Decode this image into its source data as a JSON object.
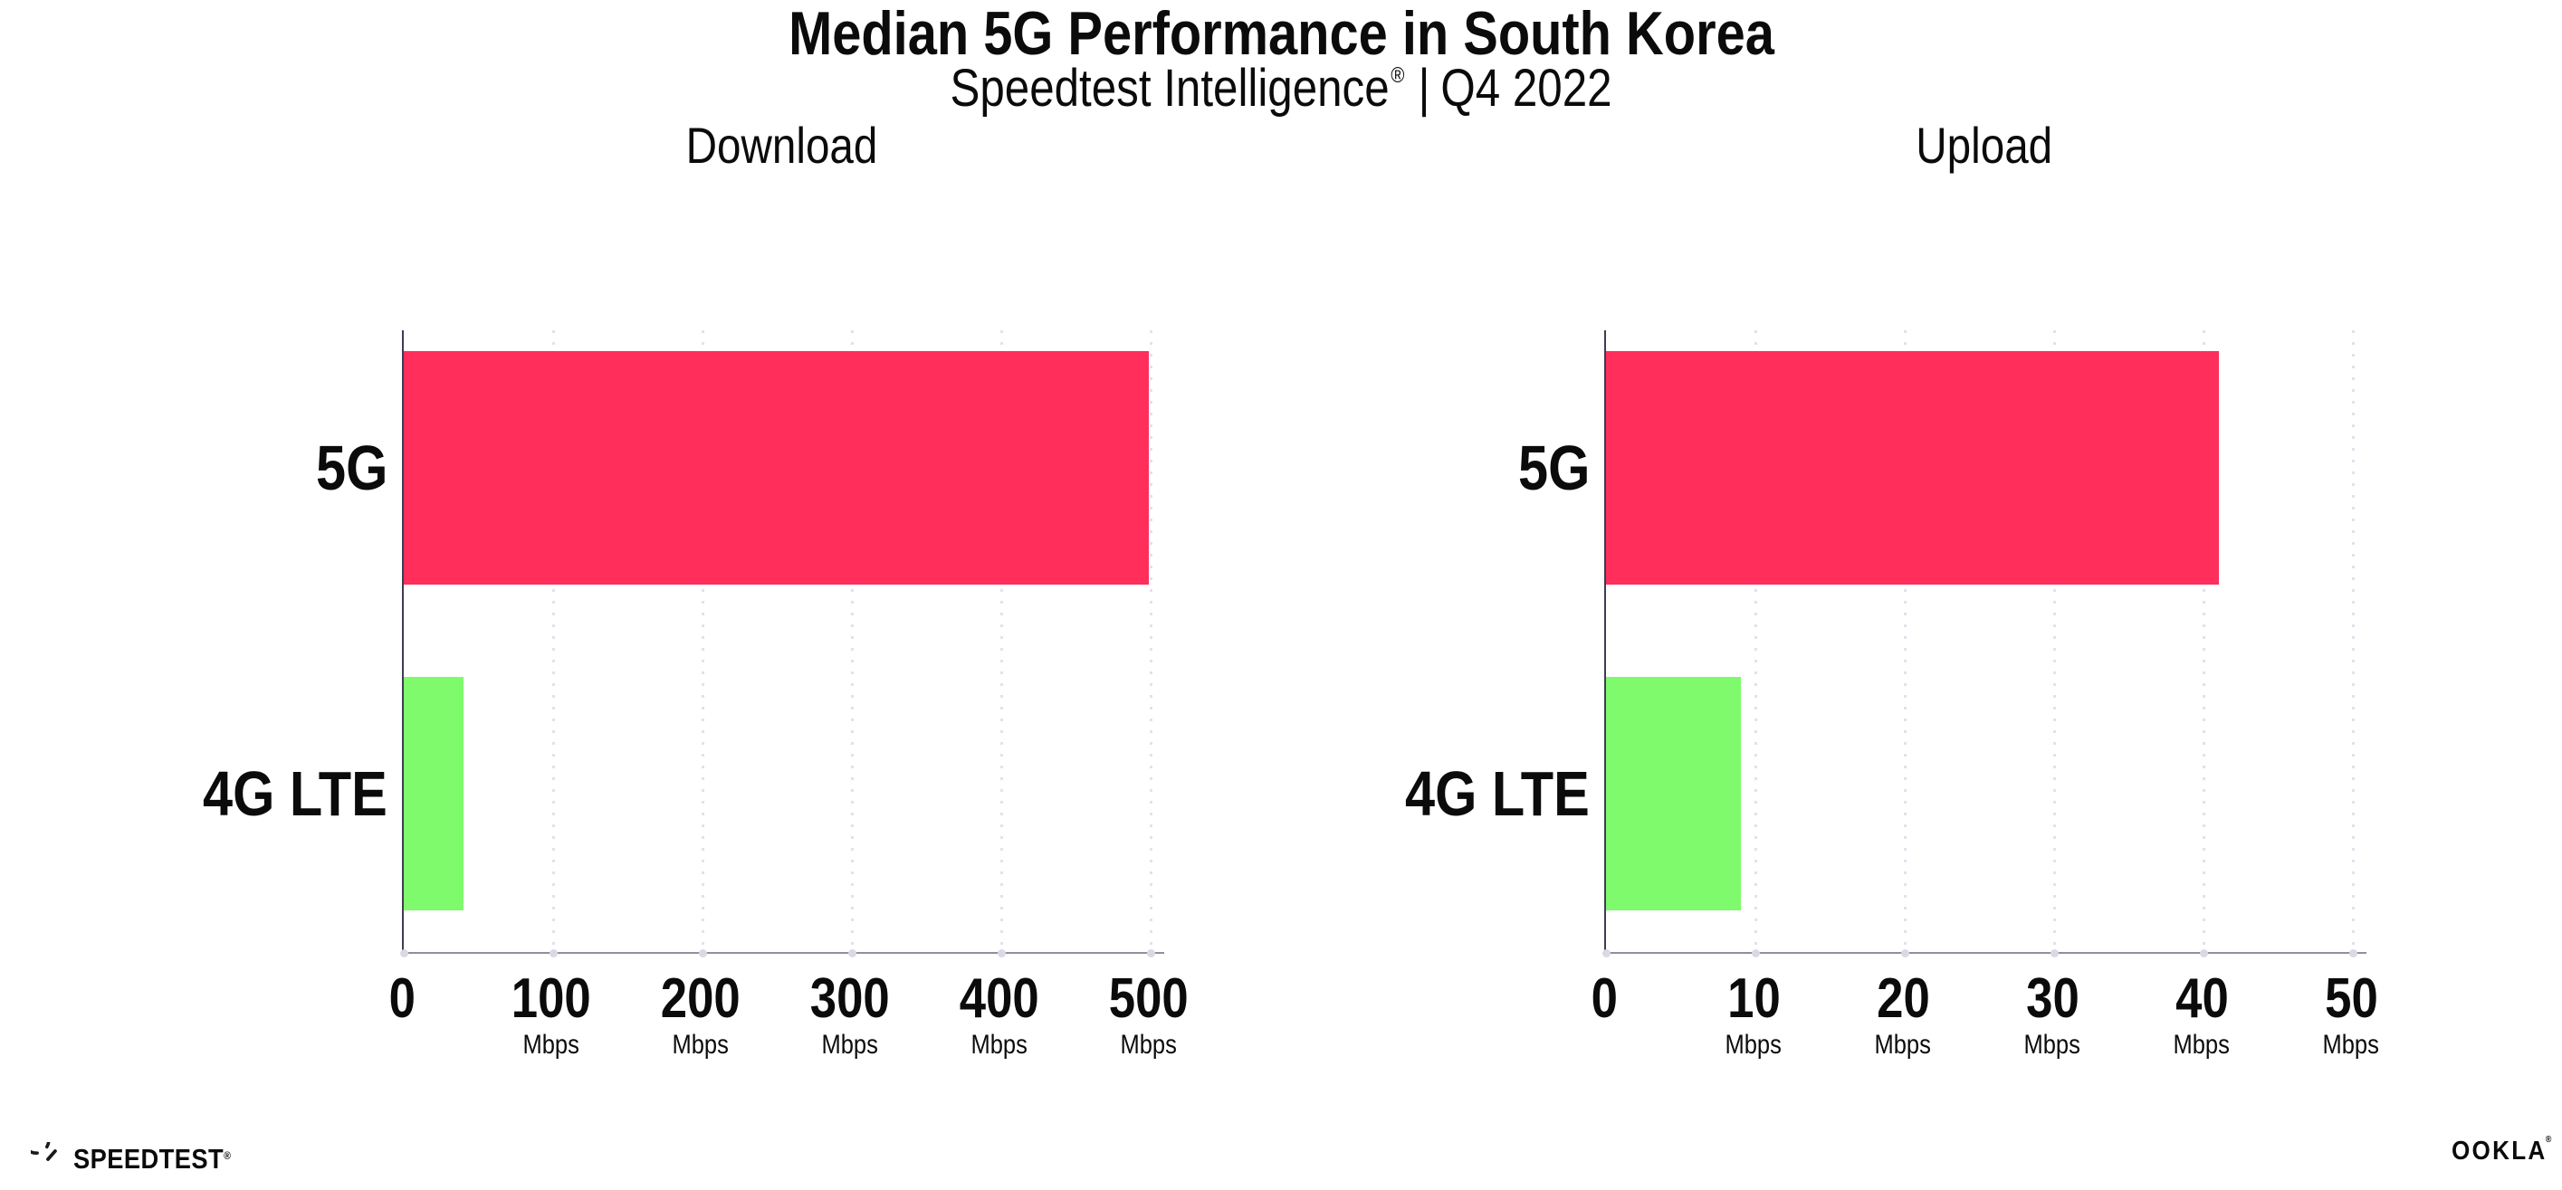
{
  "header": {
    "title": "Median 5G Performance in South Korea",
    "subtitle_brand": "Speedtest Intelligence",
    "subtitle_reg": "®",
    "subtitle_sep": "|",
    "subtitle_period": "Q4 2022"
  },
  "chart_data": [
    {
      "type": "bar",
      "orientation": "horizontal",
      "title": "Download",
      "categories": [
        "5G",
        "4G LTE"
      ],
      "values": [
        499,
        40
      ],
      "unit": "Mbps",
      "xlim": [
        0,
        500
      ],
      "xticks": [
        0,
        100,
        200,
        300,
        400,
        500
      ],
      "bar_colors": [
        "#ff2e5b",
        "#7ffa6c"
      ],
      "grid": "dotted-vertical",
      "legend": "none"
    },
    {
      "type": "bar",
      "orientation": "horizontal",
      "title": "Upload",
      "categories": [
        "5G",
        "4G LTE"
      ],
      "values": [
        41,
        9
      ],
      "unit": "Mbps",
      "xlim": [
        0,
        50
      ],
      "xticks": [
        0,
        10,
        20,
        30,
        40,
        50
      ],
      "bar_colors": [
        "#ff2e5b",
        "#7ffa6c"
      ],
      "grid": "dotted-vertical",
      "legend": "none"
    }
  ],
  "footer": {
    "speedtest_label": "SPEEDTEST",
    "speedtest_mark": "®",
    "ookla_label": "OOKLA",
    "ookla_mark": "®"
  },
  "colors": {
    "bar_5g": "#ff2e5b",
    "bar_4g": "#7ffa6c",
    "gridline": "#e2e2ec",
    "axis_y": "#3d3d52",
    "axis_x": "#90909a",
    "text": "#0b0b0c"
  }
}
